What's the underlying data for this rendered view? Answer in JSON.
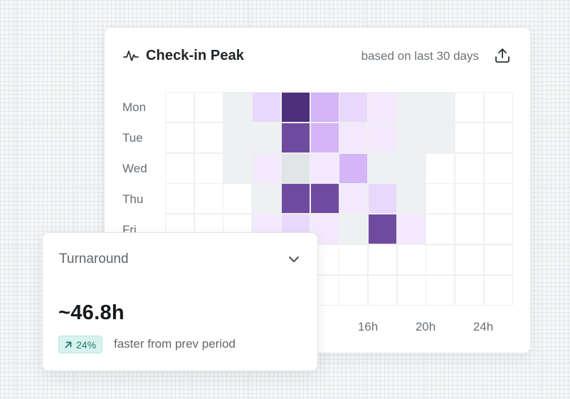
{
  "checkin_card": {
    "title": "Check-in Peak",
    "subtitle": "based on last 30 days",
    "icons": {
      "title": "activity-pulse-icon",
      "export": "upload-export-icon"
    },
    "days": [
      "Mon",
      "Tue",
      "Wed",
      "Thu",
      "Fri"
    ],
    "hour_ticks": [
      "16h",
      "20h",
      "24h"
    ],
    "heatmap": {
      "colors": {
        "0": "#ffffff",
        "1": "#eef1f1",
        "2": "#f3e9fd",
        "3": "#e9d8fb",
        "4": "#d4b5f7",
        "5": "#6f4ba0",
        "6": "#4e2f7c",
        "g": "#e1e5e5"
      },
      "rows": [
        [
          "0",
          "0",
          "1",
          "3",
          "6",
          "4",
          "3",
          "2",
          "1",
          "1",
          "0",
          "0"
        ],
        [
          "0",
          "0",
          "1",
          "1",
          "5",
          "4",
          "2",
          "2",
          "1",
          "1",
          "0",
          "0"
        ],
        [
          "0",
          "0",
          "1",
          "2",
          "g",
          "2",
          "4",
          "1",
          "1",
          "0",
          "0",
          "0"
        ],
        [
          "0",
          "0",
          "0",
          "1",
          "5",
          "5",
          "2",
          "3",
          "1",
          "0",
          "0",
          "0"
        ],
        [
          "0",
          "0",
          "0",
          "2",
          "3",
          "2",
          "1",
          "5",
          "2",
          "0",
          "0",
          "0"
        ],
        [
          "0",
          "0",
          "0",
          "0",
          "0",
          "0",
          "0",
          "0",
          "0",
          "0",
          "0",
          "0"
        ],
        [
          "0",
          "0",
          "0",
          "0",
          "0",
          "0",
          "0",
          "0",
          "0",
          "0",
          "0",
          "0"
        ]
      ]
    }
  },
  "turnaround_card": {
    "title": "Turnaround",
    "value": "~46.8h",
    "badge": "24%",
    "badge_icon": "arrow-up-right-icon",
    "note": "faster from prev period",
    "chevron_icon": "chevron-down-icon"
  },
  "colors": {
    "accent_purple": "#4e2f7c",
    "badge_green": "#1d7a68"
  }
}
